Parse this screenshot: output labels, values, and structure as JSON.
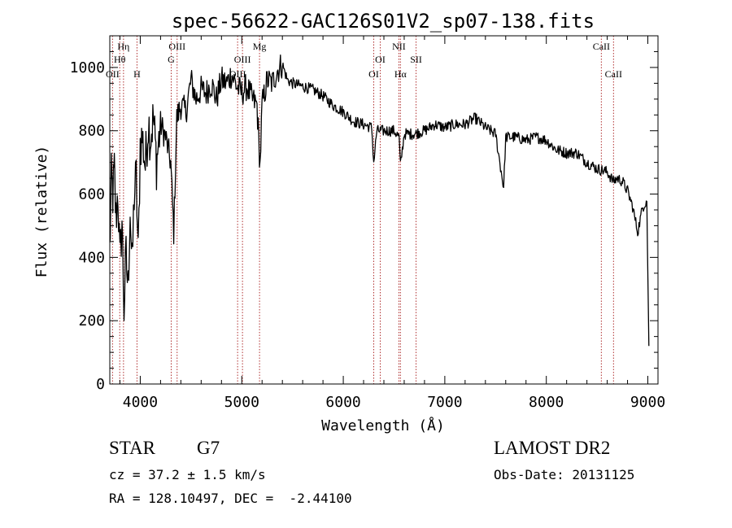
{
  "chart_data": {
    "type": "line",
    "title": "spec-56622-GAC126S01V2_sp07-138.fits",
    "xlabel": "Wavelength (Å)",
    "ylabel": "Flux (relative)",
    "xlim": [
      3700,
      9100
    ],
    "ylim": [
      0,
      1100
    ],
    "xticks": [
      4000,
      5000,
      6000,
      7000,
      8000,
      9000
    ],
    "yticks": [
      0,
      200,
      400,
      600,
      800,
      1000
    ],
    "series": [
      {
        "x": [
          3700,
          3715,
          3730,
          3745,
          3760,
          3780,
          3800,
          3820,
          3840,
          3860,
          3880,
          3900,
          3920,
          3940,
          3960,
          3980,
          4000,
          4020,
          4050,
          4080,
          4100,
          4130,
          4160,
          4200,
          4250,
          4300,
          4330,
          4360,
          4400,
          4450,
          4500,
          4550,
          4600,
          4650,
          4700,
          4750,
          4800,
          4850,
          4900,
          4950,
          5000,
          5050,
          5100,
          5150,
          5180,
          5200,
          5250,
          5300,
          5350,
          5400,
          5450,
          5500,
          5600,
          5700,
          5800,
          5900,
          6000,
          6100,
          6200,
          6280,
          6300,
          6330,
          6400,
          6500,
          6550,
          6563,
          6600,
          6700,
          6800,
          6900,
          7000,
          7100,
          7200,
          7300,
          7400,
          7500,
          7580,
          7600,
          7700,
          7800,
          7900,
          8000,
          8100,
          8200,
          8300,
          8400,
          8500,
          8600,
          8660,
          8700,
          8750,
          8800,
          8850,
          8900,
          8950,
          8990,
          9010
        ],
        "y": [
          420,
          640,
          600,
          670,
          520,
          610,
          380,
          520,
          240,
          400,
          300,
          560,
          360,
          600,
          650,
          400,
          760,
          780,
          690,
          830,
          780,
          840,
          700,
          820,
          780,
          700,
          480,
          840,
          880,
          860,
          960,
          900,
          930,
          920,
          950,
          900,
          960,
          950,
          980,
          940,
          920,
          940,
          900,
          880,
          690,
          880,
          960,
          950,
          990,
          1010,
          960,
          950,
          940,
          930,
          910,
          880,
          860,
          830,
          820,
          810,
          700,
          800,
          800,
          800,
          780,
          690,
          790,
          790,
          800,
          820,
          810,
          820,
          820,
          840,
          810,
          790,
          620,
          780,
          780,
          770,
          780,
          770,
          740,
          730,
          730,
          700,
          680,
          670,
          640,
          650,
          640,
          610,
          560,
          480,
          560,
          580,
          120
        ]
      }
    ],
    "lines": [
      {
        "wave": 3727,
        "label": "OII",
        "row": 3
      },
      {
        "wave": 3798,
        "label": "Hθ",
        "row": 2
      },
      {
        "wave": 3835,
        "label": "Hη",
        "row": 1
      },
      {
        "wave": 3968,
        "label": "H",
        "row": 3
      },
      {
        "wave": 4305,
        "label": "G",
        "row": 2
      },
      {
        "wave": 4363,
        "label": "OIII",
        "row": 1
      },
      {
        "wave": 4959,
        "label": "OIII",
        "row": 3
      },
      {
        "wave": 5007,
        "label": "OIII",
        "row": 2
      },
      {
        "wave": 5175,
        "label": "Mg",
        "row": 1
      },
      {
        "wave": 6300,
        "label": "OI",
        "row": 3
      },
      {
        "wave": 6364,
        "label": "OI",
        "row": 2
      },
      {
        "wave": 6548,
        "label": "NII",
        "row": 1
      },
      {
        "wave": 6563,
        "label": "Hα",
        "row": 3
      },
      {
        "wave": 6717,
        "label": "SII",
        "row": 2
      },
      {
        "wave": 8542,
        "label": "CaII",
        "row": 1
      },
      {
        "wave": 8662,
        "label": "CaII",
        "row": 3
      }
    ],
    "grid": false,
    "line_color": "#000000",
    "marker_color": "#b03030"
  },
  "info": {
    "object_class": "STAR",
    "subclass": "G7",
    "survey": "LAMOST DR2",
    "redshift": "cz = 37.2 ± 1.5 km/s",
    "obs_date": "Obs-Date: 20131125",
    "coords": "RA = 128.10497, DEC =  -2.44100"
  }
}
